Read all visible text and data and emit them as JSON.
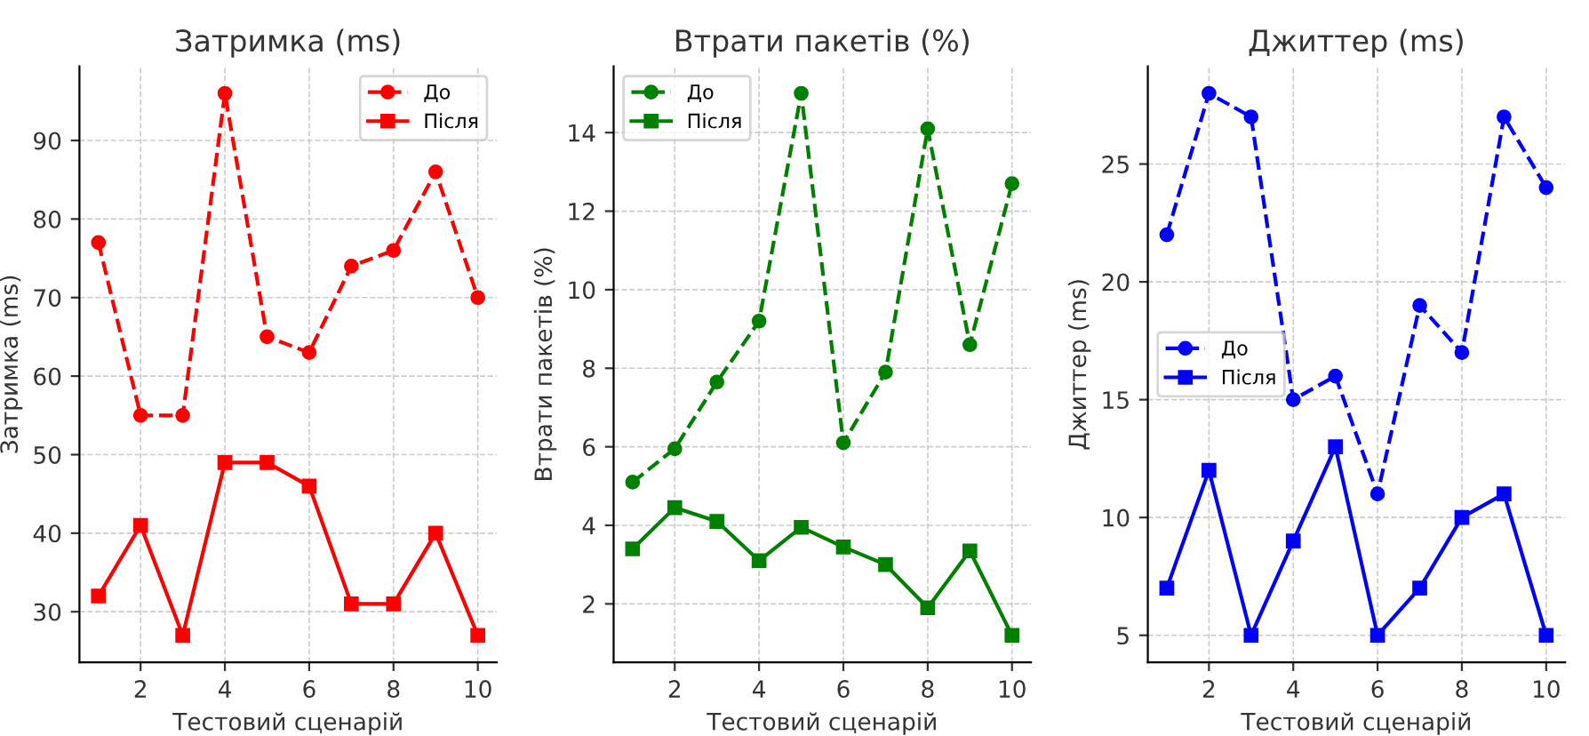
{
  "chart_data": [
    {
      "type": "line",
      "title": "Затримка (ms)",
      "xlabel": "Тестовий сценарій",
      "ylabel": "Затримка (ms)",
      "x": [
        1,
        2,
        3,
        4,
        5,
        6,
        7,
        8,
        9,
        10
      ],
      "xlim": [
        0.55,
        10.45
      ],
      "xticks": [
        2,
        4,
        6,
        8,
        10
      ],
      "ylim": [
        23.55,
        99.45
      ],
      "yticks": [
        30,
        40,
        50,
        60,
        70,
        80,
        90
      ],
      "grid": true,
      "legend": "top right",
      "series": [
        {
          "name": "До",
          "color": "#ff0000",
          "marker": "circle",
          "line_style": "dashed",
          "values": [
            77,
            55,
            55,
            96,
            65,
            63,
            74,
            76,
            86,
            70
          ]
        },
        {
          "name": "Після",
          "color": "#ff0000",
          "marker": "square",
          "line_style": "solid",
          "values": [
            32,
            41,
            27,
            49,
            49,
            46,
            31,
            31,
            40,
            27
          ]
        }
      ]
    },
    {
      "type": "line",
      "title": "Втрати пакетів (%)",
      "xlabel": "Тестовий сценарій",
      "ylabel": "Втрати пакетів (%)",
      "x": [
        1,
        2,
        3,
        4,
        5,
        6,
        7,
        8,
        9,
        10
      ],
      "xlim": [
        0.55,
        10.45
      ],
      "xticks": [
        2,
        4,
        6,
        8,
        10
      ],
      "ylim": [
        0.51,
        15.69
      ],
      "yticks": [
        2,
        4,
        6,
        8,
        10,
        12,
        14
      ],
      "grid": true,
      "legend": "top left",
      "series": [
        {
          "name": "До",
          "color": "#008000",
          "marker": "circle",
          "line_style": "dashed",
          "values": [
            5.1,
            5.95,
            7.65,
            9.2,
            15,
            6.1,
            7.9,
            14.1,
            8.6,
            12.7
          ]
        },
        {
          "name": "Після",
          "color": "#008000",
          "marker": "square",
          "line_style": "solid",
          "values": [
            3.4,
            4.45,
            4.1,
            3.1,
            3.95,
            3.45,
            3.0,
            1.9,
            3.35,
            1.2
          ]
        }
      ]
    },
    {
      "type": "line",
      "title": "Джиттер (ms)",
      "xlabel": "Тестовий сценарій",
      "ylabel": "Джиттер (ms)",
      "x": [
        1,
        2,
        3,
        4,
        5,
        6,
        7,
        8,
        9,
        10
      ],
      "xlim": [
        0.55,
        10.45
      ],
      "xticks": [
        2,
        4,
        6,
        8,
        10
      ],
      "ylim": [
        3.85,
        29.15
      ],
      "yticks": [
        5,
        10,
        15,
        20,
        25
      ],
      "grid": true,
      "legend": "left",
      "series": [
        {
          "name": "До",
          "color": "#0000ff",
          "marker": "circle",
          "line_style": "dashed",
          "values": [
            22,
            28,
            27,
            15,
            16,
            11,
            19,
            17,
            27,
            24
          ]
        },
        {
          "name": "Після",
          "color": "#0000ff",
          "marker": "square",
          "line_style": "solid",
          "values": [
            7,
            12,
            5,
            9,
            13,
            5,
            7,
            10,
            11,
            5
          ]
        }
      ]
    }
  ]
}
